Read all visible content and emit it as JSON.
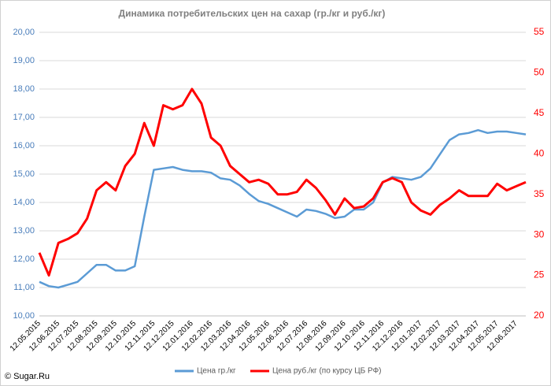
{
  "chart_data": {
    "type": "line",
    "title": "Динамика потребительских цен на сахар (гр./кг и руб./кг)",
    "source": "© Sugar.Ru",
    "categories": [
      "12.05.2015",
      null,
      "12.06.2015",
      null,
      "12.07.2015",
      null,
      "12.08.2015",
      null,
      "12.09.2015",
      null,
      "12.10.2015",
      null,
      "12.11.2015",
      null,
      "12.12.2015",
      null,
      "12.01.2016",
      null,
      "12.02.2016",
      null,
      "12.03.2016",
      null,
      "12.04.2016",
      null,
      "12.05.2016",
      null,
      "12.06.2016",
      null,
      "12.07.2016",
      null,
      "12.08.2016",
      null,
      "12.09.2016",
      null,
      "12.10.2016",
      null,
      "12.11.2016",
      null,
      "12.12.2016",
      null,
      "12.01.2017",
      null,
      "12.02.2017",
      null,
      "12.03.2017",
      null,
      "12.04.2017",
      null,
      "12.05.2017",
      null,
      "12.06.2017",
      null
    ],
    "series": [
      {
        "name": "Цена гр./кг",
        "color": "#5b9bd5",
        "values": [
          11.2,
          11.05,
          11.0,
          11.1,
          11.2,
          11.5,
          11.8,
          11.8,
          11.6,
          11.6,
          11.75,
          13.5,
          15.15,
          15.2,
          15.25,
          15.15,
          15.1,
          15.1,
          15.05,
          14.85,
          14.8,
          14.6,
          14.3,
          14.05,
          13.95,
          13.8,
          13.65,
          13.5,
          13.75,
          13.7,
          13.6,
          13.45,
          13.5,
          13.75,
          13.75,
          14.0,
          14.7,
          14.9,
          14.85,
          14.8,
          14.9,
          15.2,
          15.7,
          16.2,
          16.4,
          16.45,
          16.55,
          16.45,
          16.5,
          16.5,
          16.45,
          16.4
        ]
      },
      {
        "name": "Цена руб./кг (по курсу ЦБ РФ)",
        "color": "#ff0000",
        "axis": "y2",
        "values": [
          27.8,
          25.0,
          29.0,
          29.5,
          30.2,
          32.0,
          35.5,
          36.5,
          35.5,
          38.5,
          40.0,
          43.8,
          41.0,
          46.0,
          45.5,
          46.0,
          48.0,
          46.2,
          42.0,
          41.0,
          38.5,
          37.5,
          36.5,
          36.8,
          36.3,
          35.0,
          35.0,
          35.3,
          36.8,
          35.8,
          34.3,
          32.5,
          34.5,
          33.3,
          33.5,
          34.5,
          36.5,
          37.0,
          36.5,
          34.0,
          33.0,
          32.5,
          33.7,
          34.5,
          35.5,
          34.8,
          34.8,
          34.8,
          36.3,
          35.5,
          36.0,
          36.5
        ]
      }
    ],
    "ylim": [
      10,
      20
    ],
    "yticks": [
      {
        "value": 10,
        "label": "10,00"
      },
      {
        "value": 11,
        "label": "11,00"
      },
      {
        "value": 12,
        "label": "12,00"
      },
      {
        "value": 13,
        "label": "13,00"
      },
      {
        "value": 14,
        "label": "14,00"
      },
      {
        "value": 15,
        "label": "15,00"
      },
      {
        "value": 16,
        "label": "16,00"
      },
      {
        "value": 17,
        "label": "17,00"
      },
      {
        "value": 18,
        "label": "18,00"
      },
      {
        "value": 19,
        "label": "19,00"
      },
      {
        "value": 20,
        "label": "20,00"
      }
    ],
    "y2lim": [
      20,
      55
    ],
    "y2ticks": [
      20,
      25,
      30,
      35,
      40,
      45,
      50,
      55
    ],
    "grid": true,
    "legend": "bottom"
  }
}
